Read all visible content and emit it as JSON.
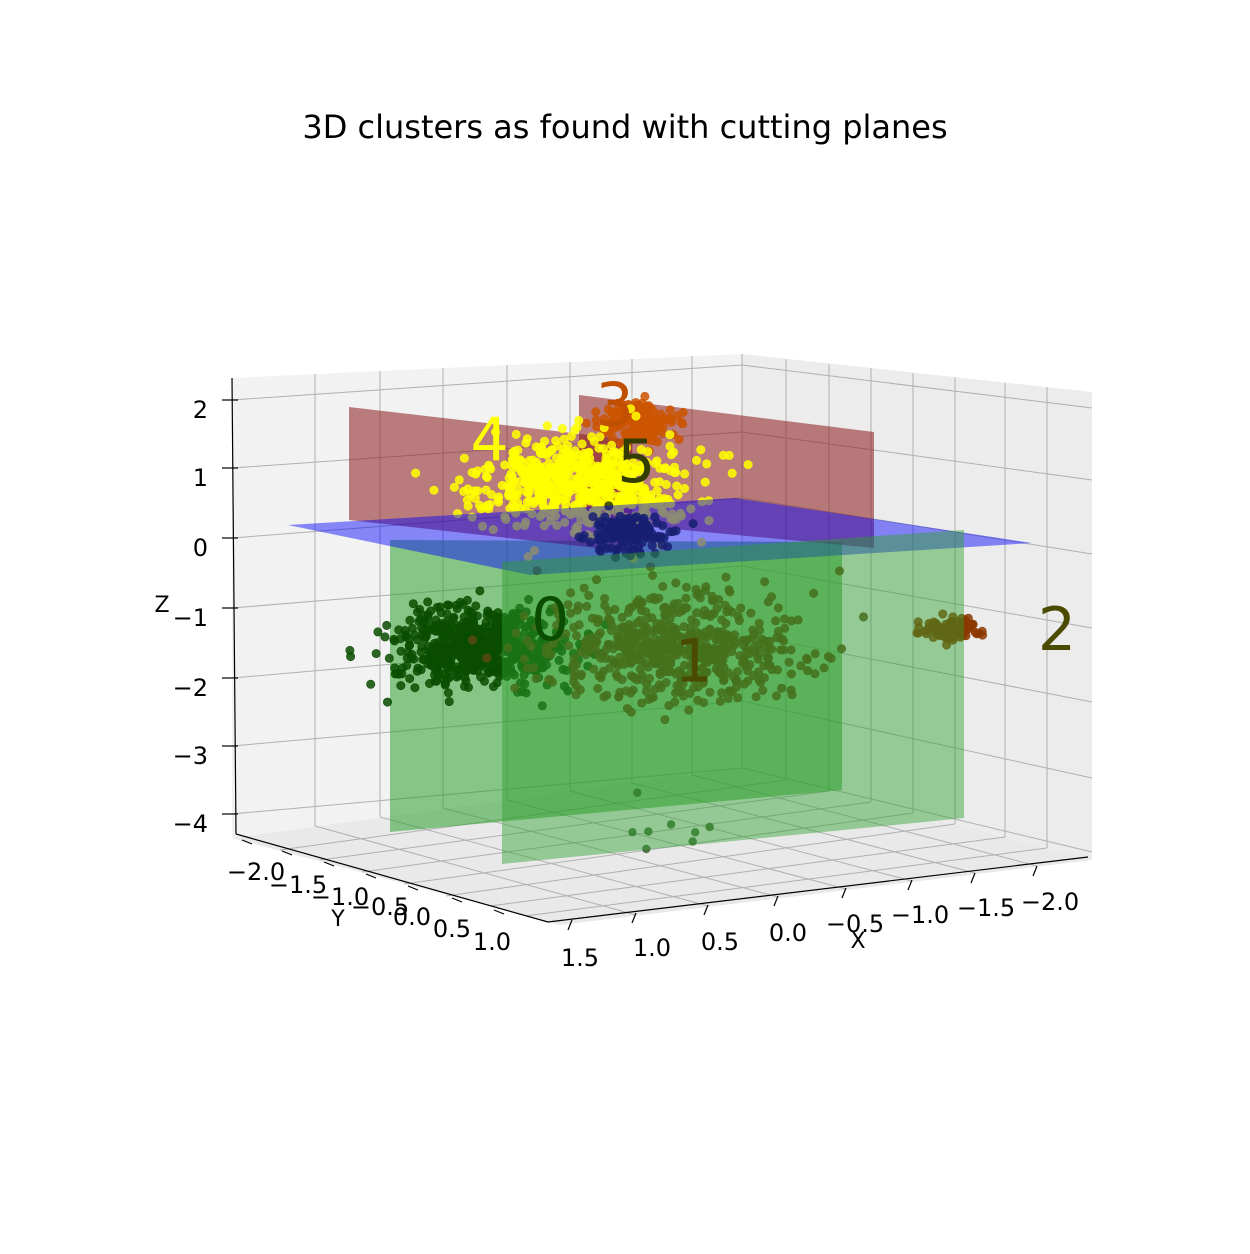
{
  "chart_data": {
    "type": "scatter",
    "projection": "3d",
    "title": "3D clusters as found with cutting planes",
    "xlabel": "X",
    "ylabel": "Y",
    "zlabel": "Z",
    "x_ticks": [
      "1.5",
      "1.0",
      "0.5",
      "0.0",
      "−0.5",
      "−1.0",
      "−1.5",
      "−2.0"
    ],
    "y_ticks": [
      "−2.0",
      "−1.5",
      "−1.0",
      "−0.5",
      "0.0",
      "0.5",
      "1.0"
    ],
    "z_ticks": [
      "2",
      "1",
      "0",
      "−1",
      "−2",
      "−3",
      "−4"
    ],
    "xlim": [
      1.5,
      -2.2
    ],
    "ylim": [
      -2.2,
      1.1
    ],
    "zlim": [
      -4.2,
      2.3
    ],
    "grid": true,
    "clusters": [
      {
        "label": "0",
        "color": "#0a4d00",
        "label_color": "#0a4d00",
        "center": {
          "x": 0.85,
          "y": -0.6,
          "z": -1.1
        },
        "spread": 0.25,
        "count": 600
      },
      {
        "label": "1",
        "color": "#5a4a10",
        "label_color": "#4a4a00",
        "center": {
          "x": 0.05,
          "y": 0.2,
          "z": -1.0
        },
        "spread": 0.35,
        "count": 600
      },
      {
        "label": "2",
        "color": "#8b3a00",
        "label_color": "#4a4a00",
        "center": {
          "x": -1.6,
          "y": 0.6,
          "z": -1.0
        },
        "spread": 0.08,
        "count": 120
      },
      {
        "label": "3",
        "color": "#cc5500",
        "label_color": "#c05000",
        "center": {
          "x": -0.9,
          "y": -1.6,
          "z": 1.3
        },
        "spread": 0.12,
        "count": 150
      },
      {
        "label": "4",
        "color": "#ffff00",
        "label_color": "#ffff00",
        "center": {
          "x": -0.05,
          "y": -0.9,
          "z": 0.9
        },
        "spread": 0.3,
        "count": 600
      },
      {
        "label": "5",
        "color": "#2a3a00",
        "label_color": "#333d00",
        "center": {
          "x": 0.2,
          "y": 0.0,
          "z": 0.6
        },
        "spread": 0.12,
        "count": 150
      }
    ],
    "stray_points": [
      {
        "x": 0.4,
        "y": 0.3,
        "z": -3.5
      },
      {
        "x": 0.5,
        "y": 0.6,
        "z": -3.6
      },
      {
        "x": 0.2,
        "y": 0.4,
        "z": -3.4
      },
      {
        "x": 0.1,
        "y": 0.5,
        "z": -3.5
      },
      {
        "x": 0.0,
        "y": 0.5,
        "z": -3.45
      },
      {
        "x": 0.3,
        "y": 0.2,
        "z": -3.0
      },
      {
        "x": 0.55,
        "y": 0.7,
        "z": -3.3
      },
      {
        "x": 0.15,
        "y": 0.55,
        "z": -3.6
      }
    ],
    "cutting_planes": [
      {
        "orientation": "horizontal",
        "z": 0.1,
        "color": "#0000ff"
      },
      {
        "orientation": "vertical",
        "x": 0.5,
        "color": "#8b0000"
      },
      {
        "orientation": "vertical",
        "x": -0.1,
        "color": "#8b0000"
      },
      {
        "orientation": "vertical",
        "x": 0.9,
        "color": "#008000"
      },
      {
        "orientation": "vertical",
        "x": -1.3,
        "color": "#008000"
      }
    ]
  }
}
